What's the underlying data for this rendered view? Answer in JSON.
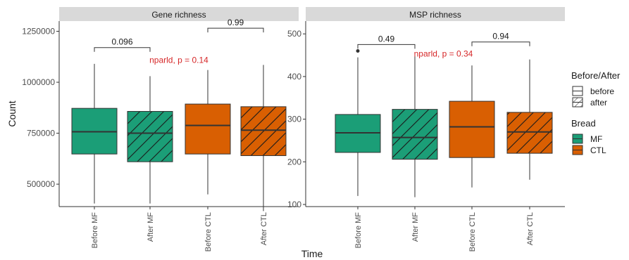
{
  "chart_data": [
    {
      "type": "box",
      "panel": "Gene richness",
      "ylabel": "Count",
      "ylim": [
        390000,
        1300000
      ],
      "yticks": [
        500000,
        750000,
        1000000,
        1250000
      ],
      "ytick_labels": [
        "500000",
        "750000",
        "1000000",
        "1250000"
      ],
      "categories": [
        "Before MF",
        "After MF",
        "Before CTL",
        "After CTL"
      ],
      "boxes": [
        {
          "category": "Before MF",
          "bread": "MF",
          "time": "before",
          "min": 405000,
          "q1": 648000,
          "median": 757000,
          "q3": 872000,
          "max": 1090000,
          "outliers": []
        },
        {
          "category": "After MF",
          "bread": "MF",
          "time": "after",
          "min": 405000,
          "q1": 610000,
          "median": 750000,
          "q3": 857000,
          "max": 1030000,
          "outliers": []
        },
        {
          "category": "Before CTL",
          "bread": "CTL",
          "time": "before",
          "min": 450000,
          "q1": 648000,
          "median": 788000,
          "q3": 893000,
          "max": 1060000,
          "outliers": []
        },
        {
          "category": "After CTL",
          "bread": "CTL",
          "time": "after",
          "min": 368000,
          "q1": 640000,
          "median": 765000,
          "q3": 880000,
          "max": 1085000,
          "outliers": []
        }
      ],
      "brackets": [
        {
          "from": "Before MF",
          "to": "After MF",
          "label": "0.096",
          "y": 1170000
        },
        {
          "from": "Before CTL",
          "to": "After CTL",
          "label": "0.99",
          "y": 1265000
        }
      ],
      "annotation": {
        "text": "nparld, p = 0.14",
        "color": "#d62728",
        "y": 1095000
      }
    },
    {
      "type": "box",
      "panel": "MSP richness",
      "ylabel": "",
      "ylim": [
        95,
        530
      ],
      "yticks": [
        100,
        200,
        300,
        400,
        500
      ],
      "ytick_labels": [
        "100",
        "200",
        "300",
        "400",
        "500"
      ],
      "categories": [
        "Before MF",
        "After MF",
        "Before CTL",
        "After CTL"
      ],
      "boxes": [
        {
          "category": "Before MF",
          "bread": "MF",
          "time": "before",
          "min": 120,
          "q1": 222,
          "median": 268,
          "q3": 311,
          "max": 445,
          "outliers": [
            460
          ]
        },
        {
          "category": "After MF",
          "bread": "MF",
          "time": "after",
          "min": 117,
          "q1": 206,
          "median": 257,
          "q3": 323,
          "max": 447,
          "outliers": []
        },
        {
          "category": "Before CTL",
          "bread": "CTL",
          "time": "before",
          "min": 140,
          "q1": 210,
          "median": 282,
          "q3": 342,
          "max": 426,
          "outliers": []
        },
        {
          "category": "After CTL",
          "bread": "CTL",
          "time": "after",
          "min": 158,
          "q1": 220,
          "median": 270,
          "q3": 316,
          "max": 440,
          "outliers": []
        }
      ],
      "brackets": [
        {
          "from": "Before MF",
          "to": "After MF",
          "label": "0.49",
          "y": 475
        },
        {
          "from": "Before CTL",
          "to": "After CTL",
          "label": "0.94",
          "y": 481
        }
      ],
      "annotation": {
        "text": "nparld, p = 0.34",
        "color": "#d62728",
        "y": 447
      }
    }
  ],
  "xlabel": "Time",
  "legend": {
    "position": "right",
    "before_after_title": "Before/After",
    "before_after_items": [
      {
        "label": "before",
        "pattern": "none"
      },
      {
        "label": "after",
        "pattern": "stripe"
      }
    ],
    "bread_title": "Bread",
    "bread_items": [
      {
        "label": "MF",
        "color": "#1b9e77"
      },
      {
        "label": "CTL",
        "color": "#d95f02"
      }
    ]
  },
  "colors": {
    "MF": "#1b9e77",
    "CTL": "#d95f02",
    "strip": "#d9d9d9",
    "annotation": "#d62728"
  }
}
